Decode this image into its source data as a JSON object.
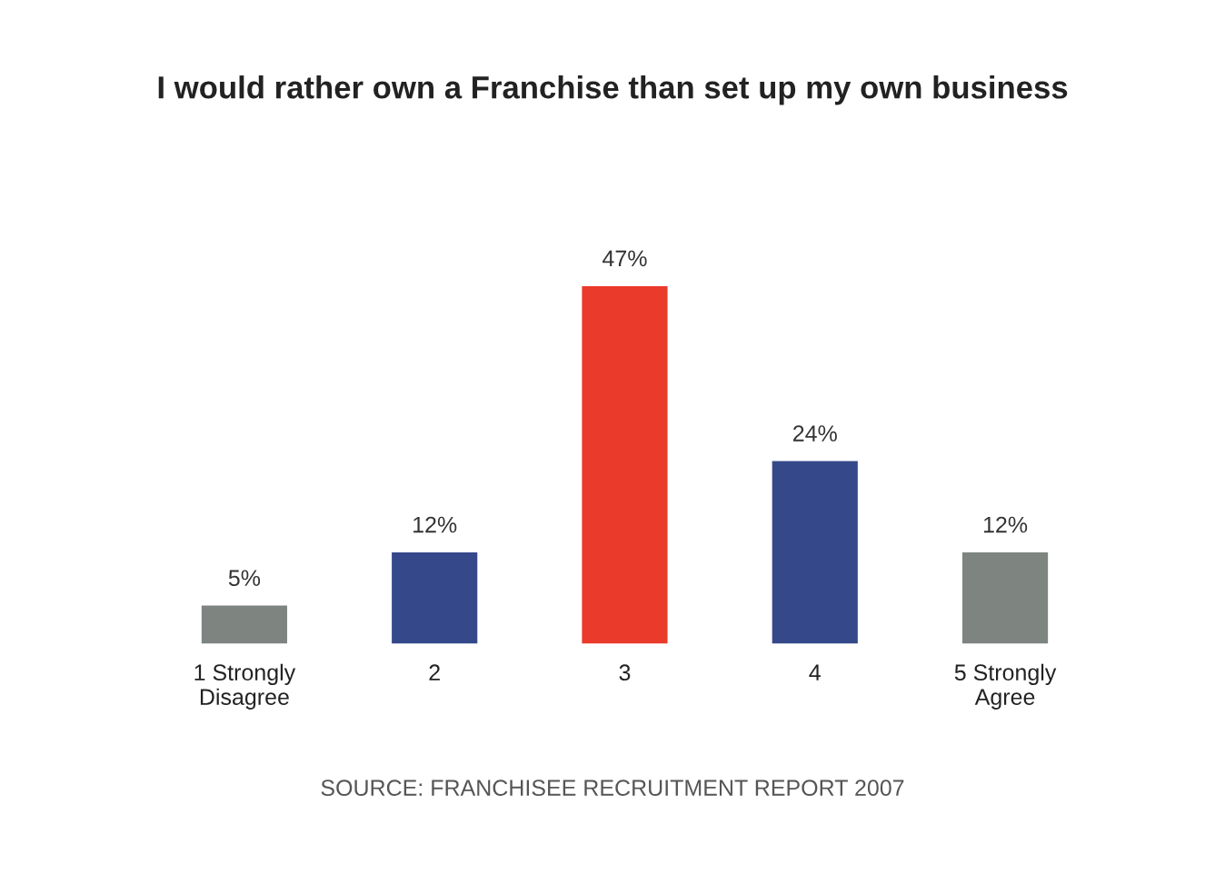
{
  "chart_data": {
    "type": "bar",
    "title": "I would rather own a Franchise than set up my own business",
    "categories": [
      "1 Strongly\nDisagree",
      "2",
      "3",
      "4",
      "5 Strongly\nAgree"
    ],
    "values": [
      5,
      12,
      47,
      24,
      12
    ],
    "colors": [
      "#7e8480",
      "#35498a",
      "#ea3a2c",
      "#35498a",
      "#7e8480"
    ],
    "value_labels": [
      "5%",
      "12%",
      "47%",
      "24%",
      "12%"
    ],
    "annotations": [
      "SOURCE: FRANCHISEE RECRUITMENT REPORT 2007"
    ]
  }
}
